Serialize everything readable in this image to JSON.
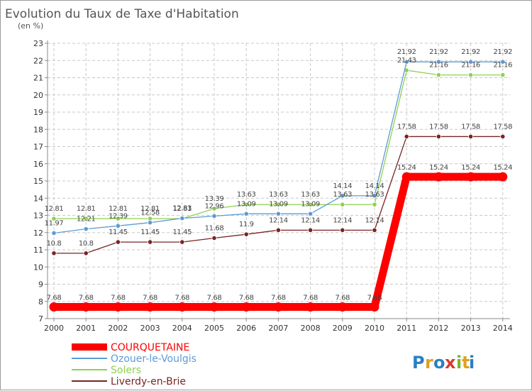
{
  "chart_data": {
    "type": "line",
    "title": "Evolution du Taux de Taxe d'Habitation",
    "subtitle": "(en %)",
    "xlabel": "",
    "ylabel": "",
    "x": [
      "2000",
      "2001",
      "2002",
      "2003",
      "2004",
      "2005",
      "2006",
      "2007",
      "2008",
      "2009",
      "2010",
      "2011",
      "2012",
      "2013",
      "2014"
    ],
    "ylim": [
      7,
      23
    ],
    "yticks": [
      "7",
      "8",
      "9",
      "10",
      "11",
      "12",
      "13",
      "14",
      "15",
      "16",
      "17",
      "18",
      "19",
      "20",
      "21",
      "22",
      "23"
    ],
    "grid": "horizontal dashed",
    "legend_position": "bottom-left",
    "series": [
      {
        "name": "COURQUETAINE",
        "color": "#ff0000",
        "values": [
          7.68,
          7.68,
          7.68,
          7.68,
          7.68,
          7.68,
          7.68,
          7.68,
          7.68,
          7.68,
          7.68,
          15.24,
          15.24,
          15.24,
          15.24
        ],
        "labels": [
          "7.68",
          "7.68",
          "7.68",
          "7.68",
          "7.68",
          "7.68",
          "7.68",
          "7.68",
          "7.68",
          "7.68",
          "7.68",
          "15.24",
          "15.24",
          "15.24",
          "15.24"
        ]
      },
      {
        "name": "Ozouer-le-Voulgis",
        "color": "#5b9bd5",
        "values": [
          11.97,
          12.21,
          12.39,
          12.58,
          12.83,
          12.96,
          13.09,
          13.09,
          13.09,
          14.14,
          14.14,
          21.92,
          21.92,
          21.92,
          21.92
        ],
        "labels": [
          "11.97",
          "12.21",
          "12.39",
          "12.58",
          "12.83",
          "12.96",
          "13.09",
          "13.09",
          "13.09",
          "14.14",
          "14.14",
          "21.92",
          "21.92",
          "21.92",
          "21.92"
        ]
      },
      {
        "name": "Solers",
        "color": "#8fd14f",
        "values": [
          12.81,
          12.81,
          12.81,
          12.81,
          12.81,
          13.39,
          13.63,
          13.63,
          13.63,
          13.63,
          13.63,
          21.43,
          21.16,
          21.16,
          21.16
        ],
        "labels": [
          "12.81",
          "12.81",
          "12.81",
          "12.81",
          "12.81",
          "13.39",
          "13.63",
          "13.63",
          "13.63",
          "13.63",
          "13.63",
          "21.43",
          "21.16",
          "21.16",
          "21.16"
        ]
      },
      {
        "name": "Liverdy-en-Brie",
        "color": "#7a2424",
        "values": [
          10.8,
          10.8,
          11.45,
          11.45,
          11.45,
          11.68,
          11.9,
          12.14,
          12.14,
          12.14,
          12.14,
          17.58,
          17.58,
          17.58,
          17.58
        ],
        "labels": [
          "10.8",
          "10.8",
          "11.45",
          "11.45",
          "11.45",
          "11.68",
          "11.9",
          "12.14",
          "12.14",
          "12.14",
          "12.14",
          "17.58",
          "17.58",
          "17.58",
          "17.58"
        ]
      }
    ]
  },
  "logo": {
    "letters": [
      "P",
      "r",
      "o",
      "x",
      "i",
      "t",
      "i"
    ],
    "colors": [
      "#2a7fc4",
      "#e0a020",
      "#2a7fc4",
      "#d83a2a",
      "#7ab82a",
      "#e0a020",
      "#2a7fc4"
    ]
  }
}
